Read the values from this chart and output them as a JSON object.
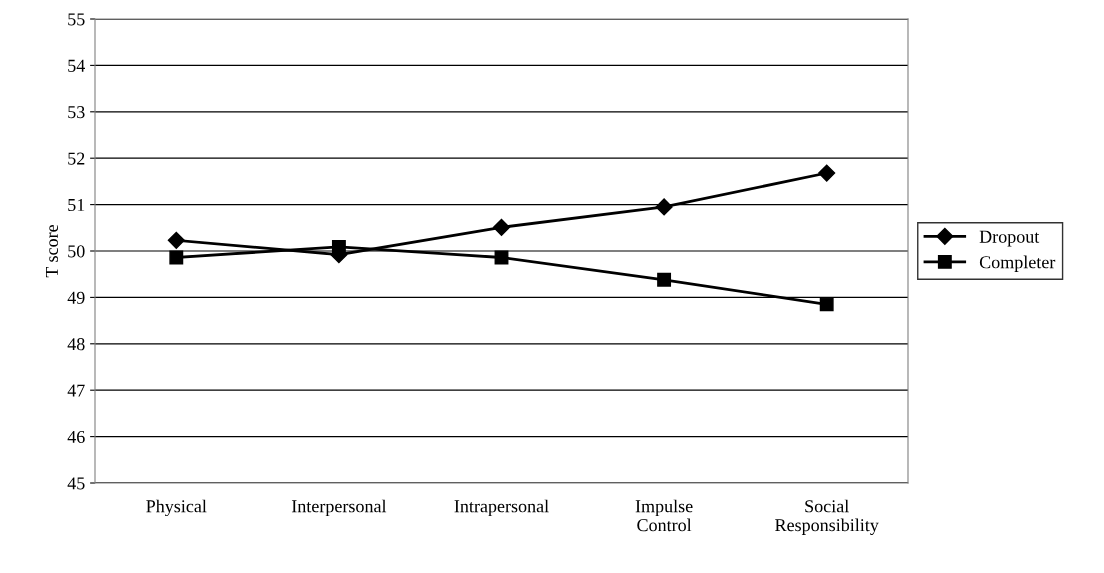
{
  "chart_data": {
    "type": "line",
    "ylabel": "T score",
    "categories": [
      "Physical",
      "Interpersonal",
      "Intrapersonal",
      "Impulse\nControl",
      "Social\nResponsibility"
    ],
    "series": [
      {
        "name": "Dropout",
        "color": "#000000",
        "marker": "diamond",
        "values": [
          50.23,
          49.92,
          50.51,
          50.95,
          51.68
        ]
      },
      {
        "name": "Completer",
        "color": "#000000",
        "marker": "square",
        "values": [
          49.86,
          50.09,
          49.86,
          49.38,
          48.85
        ]
      }
    ],
    "ylim": [
      45,
      55
    ],
    "yticks": [
      45,
      46,
      47,
      48,
      49,
      50,
      51,
      52,
      53,
      54,
      55
    ],
    "grid": "y",
    "legend": "right",
    "line_style": "solid"
  }
}
